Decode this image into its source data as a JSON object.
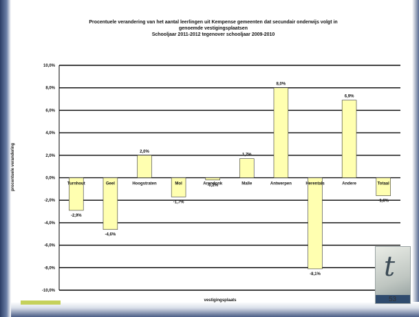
{
  "slide": {
    "page_number": "53",
    "logo_icon": "t-logo-icon"
  },
  "chart_data": {
    "type": "bar",
    "title": [
      "Procentuele verandering van het aantal leerlingen uit Kempense gemeenten dat secundair onderwijs volgt in",
      "genoemde vestigingsplaatsen",
      "Schooljaar 2011-2012 tegenover schooljaar 2009-2010"
    ],
    "xlabel": "vestigingsplaats",
    "ylabel": "procentuele verandering",
    "categories": [
      "Turnhout",
      "Geel",
      "Hoogstraten",
      "Mol",
      "Arendonk",
      "Malle",
      "Antwerpen",
      "Herentals",
      "Andere",
      "Totaal"
    ],
    "values": [
      -2.9,
      -4.6,
      2.0,
      -1.7,
      -0.2,
      1.7,
      8.0,
      -8.1,
      6.9,
      -1.6
    ],
    "value_labels": [
      "-2,9%",
      "-4,6%",
      "2,0%",
      "-1,7%",
      "-0,2%",
      "1,7%",
      "8,0%",
      "-8,1%",
      "6,9%",
      "-1,6%"
    ],
    "yticks": [
      10,
      8,
      6,
      4,
      2,
      0,
      -2,
      -4,
      -6,
      -8,
      -10
    ],
    "ytick_labels": [
      "10,0%",
      "8,0%",
      "6,0%",
      "4,0%",
      "2,0%",
      "0,0%",
      "-2,0%",
      "-4,0%",
      "-6,0%",
      "-8,0%",
      "-10,0%"
    ],
    "ylim": [
      -10,
      10
    ],
    "grid": true,
    "bar_color": "#ffffb0",
    "bar_edge_color": "#333333"
  }
}
